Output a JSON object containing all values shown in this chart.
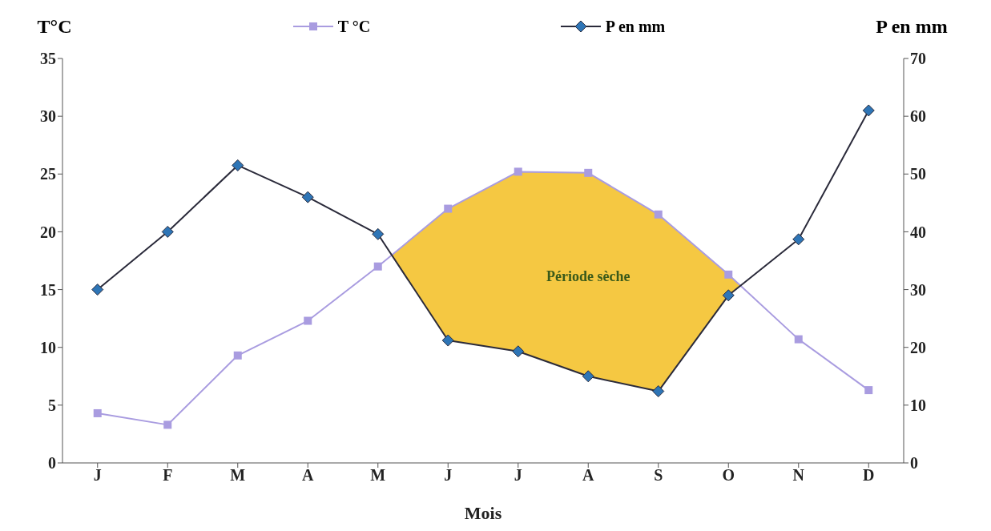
{
  "chart_data": {
    "type": "line",
    "xlabel": "Mois",
    "ylabel": "T°C",
    "y2label": "P en mm",
    "categories": [
      "J",
      "F",
      "M",
      "A",
      "M",
      "J",
      "J",
      "A",
      "S",
      "O",
      "N",
      "D"
    ],
    "series": [
      {
        "name": "T °C",
        "color": "#a99ce0",
        "marker": "square",
        "values": [
          4.3,
          3.3,
          9.3,
          12.3,
          17,
          22,
          25.2,
          25.1,
          21.5,
          16.3,
          10.7,
          6.3
        ]
      },
      {
        "name": "P en mm",
        "color": "#2a2a3a",
        "marker": "diamond",
        "axis": "y2",
        "values": [
          30,
          40,
          51.5,
          46,
          39.6,
          21.2,
          19.3,
          15,
          12.4,
          29,
          38.7,
          61
        ]
      }
    ],
    "ylim": [
      0,
      35
    ],
    "yticks": [
      0,
      5,
      10,
      15,
      20,
      25,
      30,
      35
    ],
    "y2lim": [
      0,
      70
    ],
    "y2ticks": [
      0,
      10,
      20,
      30,
      40,
      50,
      60,
      70
    ],
    "annotations": [
      "Période sèche"
    ],
    "legend": "top"
  }
}
